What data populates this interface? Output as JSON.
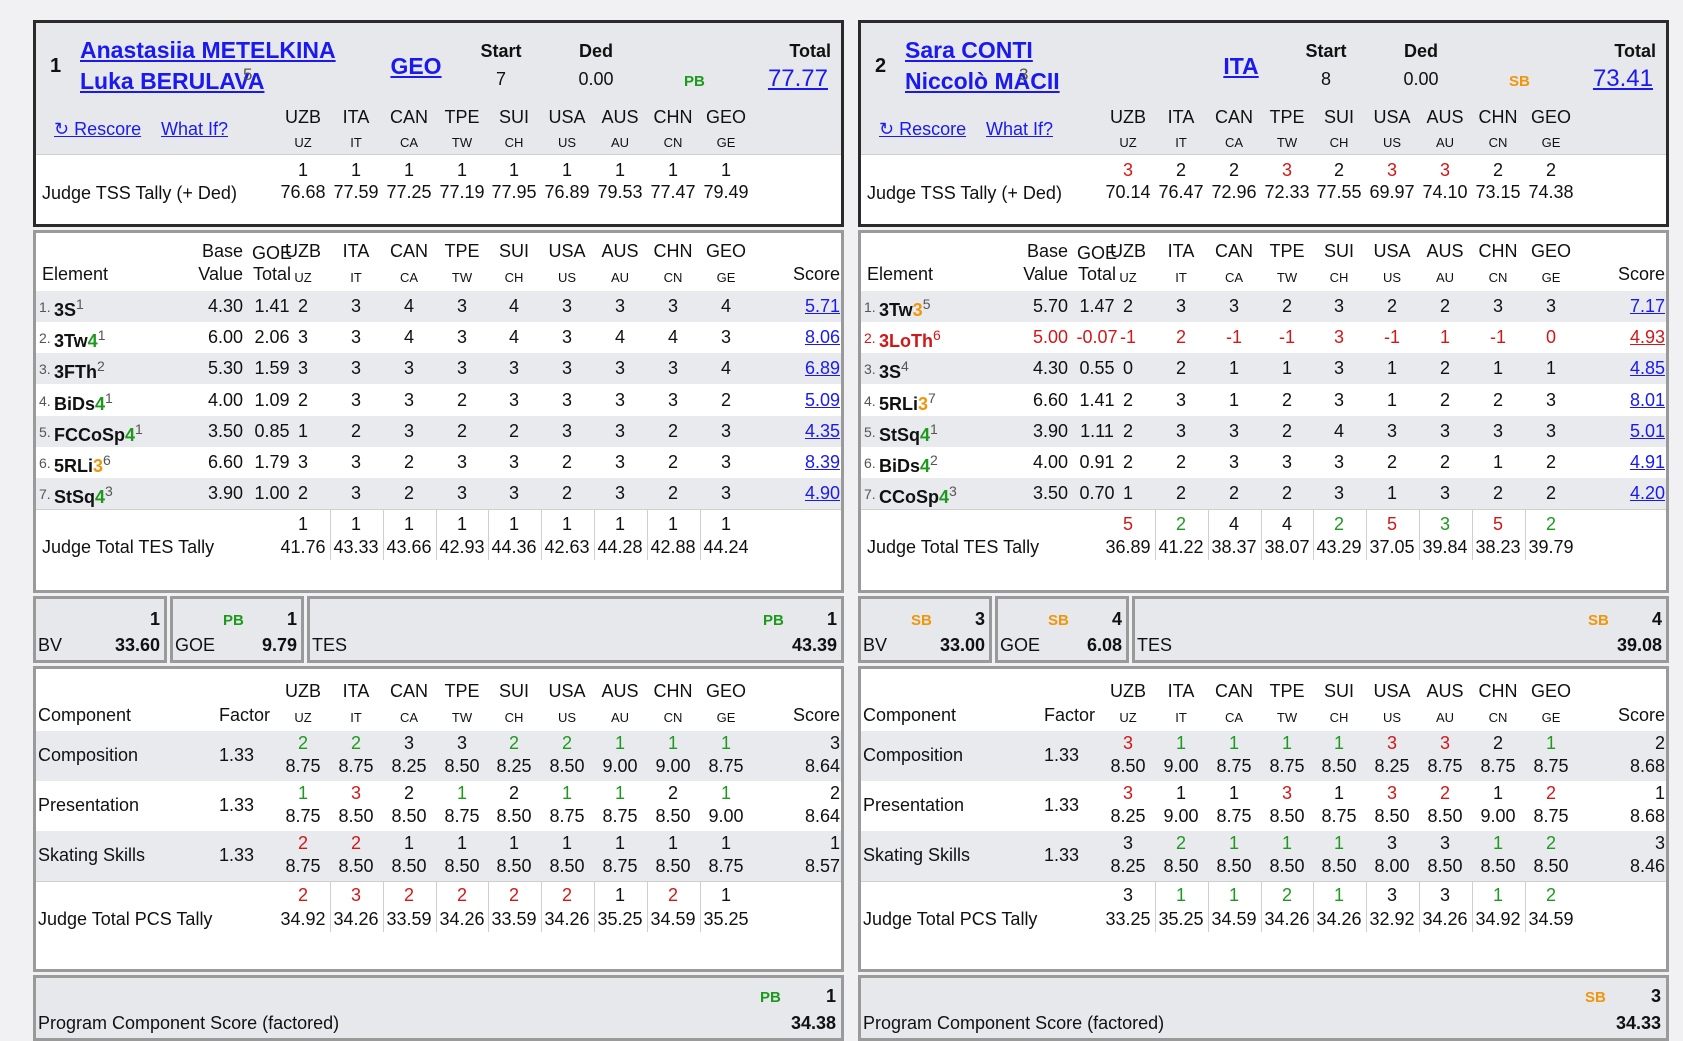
{
  "judges": [
    {
      "code": "UZB",
      "sub": "UZ"
    },
    {
      "code": "ITA",
      "sub": "IT"
    },
    {
      "code": "CAN",
      "sub": "CA"
    },
    {
      "code": "TPE",
      "sub": "TW"
    },
    {
      "code": "SUI",
      "sub": "CH"
    },
    {
      "code": "USA",
      "sub": "US"
    },
    {
      "code": "AUS",
      "sub": "AU"
    },
    {
      "code": "CHN",
      "sub": "CN"
    },
    {
      "code": "GEO",
      "sub": "GE"
    }
  ],
  "labels": {
    "start": "Start",
    "ded": "Ded",
    "total": "Total",
    "rescore": "↻ Rescore",
    "whatif": "What If?",
    "tss_tally": "Judge TSS Tally (+ Ded)",
    "element": "Element",
    "base": "Base",
    "value": "Value",
    "goe": "GOE",
    "goe_total": "Total",
    "score": "Score",
    "tes_tally": "Judge Total TES Tally",
    "bv": "BV",
    "goe_box": "GOE",
    "tes": "TES",
    "component": "Component",
    "factor": "Factor",
    "pcs_tally": "Judge Total PCS Tally",
    "pcs_final": "Program Component Score (factored)"
  },
  "colors": {
    "red": "#d01818",
    "green": "#1d9a1d",
    "orange": "#f0960a",
    "link": "#1a1af0"
  },
  "entries": [
    {
      "rank": "1",
      "name1": "Anastasiia METELKINA",
      "name2": "Luka BERULAVA",
      "name_sup": "5",
      "nation": "GEO",
      "start": "7",
      "ded": "0.00",
      "badge": "PB",
      "badge_type": "pb",
      "total": "77.77",
      "tss": {
        "ranks": [
          "1",
          "1",
          "1",
          "1",
          "1",
          "1",
          "1",
          "1",
          "1"
        ],
        "colors": [
          "black",
          "black",
          "black",
          "black",
          "black",
          "black",
          "black",
          "black",
          "black"
        ],
        "values": [
          "76.68",
          "77.59",
          "77.25",
          "77.19",
          "77.95",
          "76.89",
          "79.53",
          "77.47",
          "79.49"
        ]
      },
      "elements": [
        {
          "num": "1.",
          "base": "3S",
          "lvl": "",
          "lvlc": "",
          "sup": "1",
          "red": false,
          "bv": "4.30",
          "goe": "1.41",
          "goes": [
            "2",
            "3",
            "4",
            "3",
            "4",
            "3",
            "3",
            "3",
            "4"
          ],
          "goec": [
            "black",
            "black",
            "black",
            "black",
            "black",
            "black",
            "black",
            "black",
            "black"
          ],
          "score": "5.71"
        },
        {
          "num": "2.",
          "base": "3Tw",
          "lvl": "4",
          "lvlc": "green",
          "sup": "1",
          "red": false,
          "bv": "6.00",
          "goe": "2.06",
          "goes": [
            "3",
            "3",
            "4",
            "3",
            "4",
            "3",
            "4",
            "4",
            "3"
          ],
          "goec": [
            "black",
            "black",
            "black",
            "black",
            "black",
            "black",
            "black",
            "black",
            "black"
          ],
          "score": "8.06"
        },
        {
          "num": "3.",
          "base": "3FTh",
          "lvl": "",
          "lvlc": "",
          "sup": "2",
          "red": false,
          "bv": "5.30",
          "goe": "1.59",
          "goes": [
            "3",
            "3",
            "3",
            "3",
            "3",
            "3",
            "3",
            "3",
            "4"
          ],
          "goec": [
            "black",
            "black",
            "black",
            "black",
            "black",
            "black",
            "black",
            "black",
            "black"
          ],
          "score": "6.89"
        },
        {
          "num": "4.",
          "base": "BiDs",
          "lvl": "4",
          "lvlc": "green",
          "sup": "1",
          "red": false,
          "bv": "4.00",
          "goe": "1.09",
          "goes": [
            "2",
            "3",
            "3",
            "2",
            "3",
            "3",
            "3",
            "3",
            "2"
          ],
          "goec": [
            "black",
            "black",
            "black",
            "black",
            "black",
            "black",
            "black",
            "black",
            "black"
          ],
          "score": "5.09"
        },
        {
          "num": "5.",
          "base": "FCCoSp",
          "lvl": "4",
          "lvlc": "green",
          "sup": "1",
          "red": false,
          "bv": "3.50",
          "goe": "0.85",
          "goes": [
            "1",
            "2",
            "3",
            "2",
            "2",
            "3",
            "3",
            "2",
            "3"
          ],
          "goec": [
            "black",
            "black",
            "black",
            "black",
            "black",
            "black",
            "black",
            "black",
            "black"
          ],
          "score": "4.35"
        },
        {
          "num": "6.",
          "base": "5RLi",
          "lvl": "3",
          "lvlc": "orange",
          "sup": "6",
          "red": false,
          "bv": "6.60",
          "goe": "1.79",
          "goes": [
            "3",
            "3",
            "2",
            "3",
            "3",
            "2",
            "3",
            "2",
            "3"
          ],
          "goec": [
            "black",
            "black",
            "black",
            "black",
            "black",
            "black",
            "black",
            "black",
            "black"
          ],
          "score": "8.39"
        },
        {
          "num": "7.",
          "base": "StSq",
          "lvl": "4",
          "lvlc": "green",
          "sup": "3",
          "red": false,
          "bv": "3.90",
          "goe": "1.00",
          "goes": [
            "2",
            "3",
            "2",
            "3",
            "3",
            "2",
            "3",
            "2",
            "3"
          ],
          "goec": [
            "black",
            "black",
            "black",
            "black",
            "black",
            "black",
            "black",
            "black",
            "black"
          ],
          "score": "4.90"
        }
      ],
      "tes": {
        "ranks": [
          "1",
          "1",
          "1",
          "1",
          "1",
          "1",
          "1",
          "1",
          "1"
        ],
        "colors": [
          "black",
          "black",
          "black",
          "black",
          "black",
          "black",
          "black",
          "black",
          "black"
        ],
        "values": [
          "41.76",
          "43.33",
          "43.66",
          "42.93",
          "44.36",
          "42.63",
          "44.28",
          "42.88",
          "44.24"
        ]
      },
      "bv_box": {
        "rank": "1",
        "badge": "",
        "badge_type": "",
        "value": "33.60"
      },
      "goe_box": {
        "rank": "1",
        "badge": "PB",
        "badge_type": "pb",
        "value": "9.79"
      },
      "tes_box": {
        "rank": "1",
        "badge": "PB",
        "badge_type": "pb",
        "value": "43.39"
      },
      "components": [
        {
          "name": "Composition",
          "factor": "1.33",
          "ranks": [
            "2",
            "2",
            "3",
            "3",
            "2",
            "2",
            "1",
            "1",
            "1"
          ],
          "colors": [
            "green",
            "green",
            "black",
            "black",
            "green",
            "green",
            "green",
            "green",
            "green"
          ],
          "values": [
            "8.75",
            "8.75",
            "8.25",
            "8.50",
            "8.25",
            "8.50",
            "9.00",
            "9.00",
            "8.75"
          ],
          "srank": "3",
          "score": "8.64"
        },
        {
          "name": "Presentation",
          "factor": "1.33",
          "ranks": [
            "1",
            "3",
            "2",
            "1",
            "2",
            "1",
            "1",
            "2",
            "1"
          ],
          "colors": [
            "green",
            "red",
            "black",
            "green",
            "black",
            "green",
            "green",
            "black",
            "green"
          ],
          "values": [
            "8.75",
            "8.50",
            "8.50",
            "8.75",
            "8.50",
            "8.75",
            "8.75",
            "8.50",
            "9.00"
          ],
          "srank": "2",
          "score": "8.64"
        },
        {
          "name": "Skating Skills",
          "factor": "1.33",
          "ranks": [
            "2",
            "2",
            "1",
            "1",
            "1",
            "1",
            "1",
            "1",
            "1"
          ],
          "colors": [
            "red",
            "red",
            "black",
            "black",
            "black",
            "black",
            "black",
            "black",
            "black"
          ],
          "values": [
            "8.75",
            "8.50",
            "8.50",
            "8.50",
            "8.50",
            "8.50",
            "8.75",
            "8.50",
            "8.75"
          ],
          "srank": "1",
          "score": "8.57"
        }
      ],
      "pcs": {
        "ranks": [
          "2",
          "3",
          "2",
          "2",
          "2",
          "2",
          "1",
          "2",
          "1"
        ],
        "colors": [
          "red",
          "red",
          "red",
          "red",
          "red",
          "red",
          "black",
          "red",
          "black"
        ],
        "values": [
          "34.92",
          "34.26",
          "33.59",
          "34.26",
          "33.59",
          "34.26",
          "35.25",
          "34.59",
          "35.25"
        ]
      },
      "pcs_box": {
        "rank": "1",
        "badge": "PB",
        "badge_type": "pb",
        "value": "34.38"
      }
    },
    {
      "rank": "2",
      "name1": "Sara CONTI",
      "name2": "Niccolò MACII",
      "name_sup": "3",
      "nation": "ITA",
      "start": "8",
      "ded": "0.00",
      "badge": "SB",
      "badge_type": "sb",
      "total": "73.41",
      "tss": {
        "ranks": [
          "3",
          "2",
          "2",
          "3",
          "2",
          "3",
          "3",
          "2",
          "2"
        ],
        "colors": [
          "red",
          "black",
          "black",
          "red",
          "black",
          "red",
          "red",
          "black",
          "black"
        ],
        "values": [
          "70.14",
          "76.47",
          "72.96",
          "72.33",
          "77.55",
          "69.97",
          "74.10",
          "73.15",
          "74.38"
        ]
      },
      "elements": [
        {
          "num": "1.",
          "base": "3Tw",
          "lvl": "3",
          "lvlc": "orange",
          "sup": "5",
          "red": false,
          "bv": "5.70",
          "goe": "1.47",
          "goes": [
            "2",
            "3",
            "3",
            "2",
            "3",
            "2",
            "2",
            "3",
            "3"
          ],
          "goec": [
            "black",
            "black",
            "black",
            "black",
            "black",
            "black",
            "black",
            "black",
            "black"
          ],
          "score": "7.17"
        },
        {
          "num": "2.",
          "base": "3LoTh",
          "lvl": "",
          "lvlc": "",
          "sup": "6",
          "red": true,
          "bv": "5.00",
          "goe": "-0.07",
          "goes": [
            "-1",
            "2",
            "-1",
            "-1",
            "3",
            "-1",
            "1",
            "-1",
            "0"
          ],
          "goec": [
            "red",
            "red",
            "red",
            "red",
            "red",
            "red",
            "red",
            "red",
            "red"
          ],
          "score": "4.93"
        },
        {
          "num": "3.",
          "base": "3S",
          "lvl": "",
          "lvlc": "",
          "sup": "4",
          "red": false,
          "bv": "4.30",
          "goe": "0.55",
          "goes": [
            "0",
            "2",
            "1",
            "1",
            "3",
            "1",
            "2",
            "1",
            "1"
          ],
          "goec": [
            "black",
            "black",
            "black",
            "black",
            "black",
            "black",
            "black",
            "black",
            "black"
          ],
          "score": "4.85"
        },
        {
          "num": "4.",
          "base": "5RLi",
          "lvl": "3",
          "lvlc": "orange",
          "sup": "7",
          "red": false,
          "bv": "6.60",
          "goe": "1.41",
          "goes": [
            "2",
            "3",
            "1",
            "2",
            "3",
            "1",
            "2",
            "2",
            "3"
          ],
          "goec": [
            "black",
            "black",
            "black",
            "black",
            "black",
            "black",
            "black",
            "black",
            "black"
          ],
          "score": "8.01"
        },
        {
          "num": "5.",
          "base": "StSq",
          "lvl": "4",
          "lvlc": "green",
          "sup": "1",
          "red": false,
          "bv": "3.90",
          "goe": "1.11",
          "goes": [
            "2",
            "3",
            "3",
            "2",
            "4",
            "3",
            "3",
            "3",
            "3"
          ],
          "goec": [
            "black",
            "black",
            "black",
            "black",
            "black",
            "black",
            "black",
            "black",
            "black"
          ],
          "score": "5.01"
        },
        {
          "num": "6.",
          "base": "BiDs",
          "lvl": "4",
          "lvlc": "green",
          "sup": "2",
          "red": false,
          "bv": "4.00",
          "goe": "0.91",
          "goes": [
            "2",
            "2",
            "3",
            "3",
            "3",
            "2",
            "2",
            "1",
            "2"
          ],
          "goec": [
            "black",
            "black",
            "black",
            "black",
            "black",
            "black",
            "black",
            "black",
            "black"
          ],
          "score": "4.91"
        },
        {
          "num": "7.",
          "base": "CCoSp",
          "lvl": "4",
          "lvlc": "green",
          "sup": "3",
          "red": false,
          "bv": "3.50",
          "goe": "0.70",
          "goes": [
            "1",
            "2",
            "2",
            "2",
            "3",
            "1",
            "3",
            "2",
            "2"
          ],
          "goec": [
            "black",
            "black",
            "black",
            "black",
            "black",
            "black",
            "black",
            "black",
            "black"
          ],
          "score": "4.20"
        }
      ],
      "tes": {
        "ranks": [
          "5",
          "2",
          "4",
          "4",
          "2",
          "5",
          "3",
          "5",
          "2"
        ],
        "colors": [
          "red",
          "green",
          "black",
          "black",
          "green",
          "red",
          "green",
          "red",
          "green"
        ],
        "values": [
          "36.89",
          "41.22",
          "38.37",
          "38.07",
          "43.29",
          "37.05",
          "39.84",
          "38.23",
          "39.79"
        ]
      },
      "bv_box": {
        "rank": "3",
        "badge": "SB",
        "badge_type": "sb",
        "value": "33.00"
      },
      "goe_box": {
        "rank": "4",
        "badge": "SB",
        "badge_type": "sb",
        "value": "6.08"
      },
      "tes_box": {
        "rank": "4",
        "badge": "SB",
        "badge_type": "sb",
        "value": "39.08"
      },
      "components": [
        {
          "name": "Composition",
          "factor": "1.33",
          "ranks": [
            "3",
            "1",
            "1",
            "1",
            "1",
            "3",
            "3",
            "2",
            "1"
          ],
          "colors": [
            "red",
            "green",
            "green",
            "green",
            "green",
            "red",
            "red",
            "black",
            "green"
          ],
          "values": [
            "8.50",
            "9.00",
            "8.75",
            "8.75",
            "8.50",
            "8.25",
            "8.75",
            "8.75",
            "8.75"
          ],
          "srank": "2",
          "score": "8.68"
        },
        {
          "name": "Presentation",
          "factor": "1.33",
          "ranks": [
            "3",
            "1",
            "1",
            "3",
            "1",
            "3",
            "2",
            "1",
            "2"
          ],
          "colors": [
            "red",
            "black",
            "black",
            "red",
            "black",
            "red",
            "red",
            "black",
            "red"
          ],
          "values": [
            "8.25",
            "9.00",
            "8.75",
            "8.50",
            "8.75",
            "8.50",
            "8.50",
            "9.00",
            "8.75"
          ],
          "srank": "1",
          "score": "8.68"
        },
        {
          "name": "Skating Skills",
          "factor": "1.33",
          "ranks": [
            "3",
            "2",
            "1",
            "1",
            "1",
            "3",
            "3",
            "1",
            "2"
          ],
          "colors": [
            "black",
            "green",
            "green",
            "green",
            "green",
            "black",
            "black",
            "green",
            "green"
          ],
          "values": [
            "8.25",
            "8.50",
            "8.50",
            "8.50",
            "8.50",
            "8.00",
            "8.50",
            "8.50",
            "8.50"
          ],
          "srank": "3",
          "score": "8.46"
        }
      ],
      "pcs": {
        "ranks": [
          "3",
          "1",
          "1",
          "2",
          "1",
          "3",
          "3",
          "1",
          "2"
        ],
        "colors": [
          "black",
          "green",
          "green",
          "green",
          "green",
          "black",
          "black",
          "green",
          "green"
        ],
        "values": [
          "33.25",
          "35.25",
          "34.59",
          "34.26",
          "34.26",
          "32.92",
          "34.26",
          "34.92",
          "34.59"
        ]
      },
      "pcs_box": {
        "rank": "3",
        "badge": "SB",
        "badge_type": "sb",
        "value": "34.33"
      }
    }
  ]
}
